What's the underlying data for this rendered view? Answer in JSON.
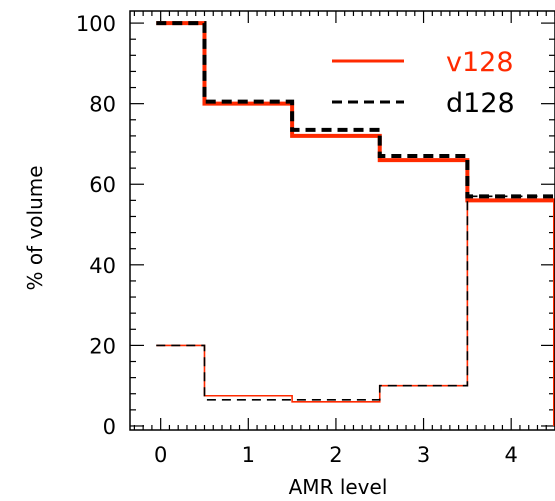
{
  "chart_data": {
    "type": "line",
    "step": true,
    "xlabel": "AMR level",
    "ylabel": "% of volume",
    "xlim": [
      -0.35,
      4.5
    ],
    "ylim": [
      -1,
      103
    ],
    "x_ticks": [
      "0",
      "1",
      "2",
      "3",
      "4"
    ],
    "y_ticks": [
      "0",
      "20",
      "40",
      "60",
      "80",
      "100"
    ],
    "legend_position": "top-right",
    "series": [
      {
        "name": "v128",
        "color": "#ff2a00",
        "style": "solid",
        "width": "thick",
        "steps": [
          [
            0,
            100
          ],
          [
            1,
            80
          ],
          [
            2,
            72
          ],
          [
            3,
            66
          ],
          [
            4,
            56
          ],
          [
            4.5,
            0
          ]
        ]
      },
      {
        "name": "d128",
        "color": "#000000",
        "style": "dashed",
        "width": "thick",
        "steps": [
          [
            0,
            100
          ],
          [
            1,
            80.5
          ],
          [
            2,
            73.5
          ],
          [
            3,
            67
          ],
          [
            4,
            57
          ]
        ]
      },
      {
        "name": "",
        "color": "#ff2a00",
        "style": "solid",
        "width": "thin",
        "steps": [
          [
            0,
            20
          ],
          [
            1,
            7.5
          ],
          [
            2,
            6
          ],
          [
            3,
            10
          ],
          [
            4,
            56
          ]
        ]
      },
      {
        "name": "",
        "color": "#000000",
        "style": "dashed",
        "width": "thin",
        "steps": [
          [
            0,
            20
          ],
          [
            1,
            6.5
          ],
          [
            2,
            6.5
          ],
          [
            3,
            10
          ],
          [
            4,
            57
          ]
        ]
      }
    ]
  }
}
